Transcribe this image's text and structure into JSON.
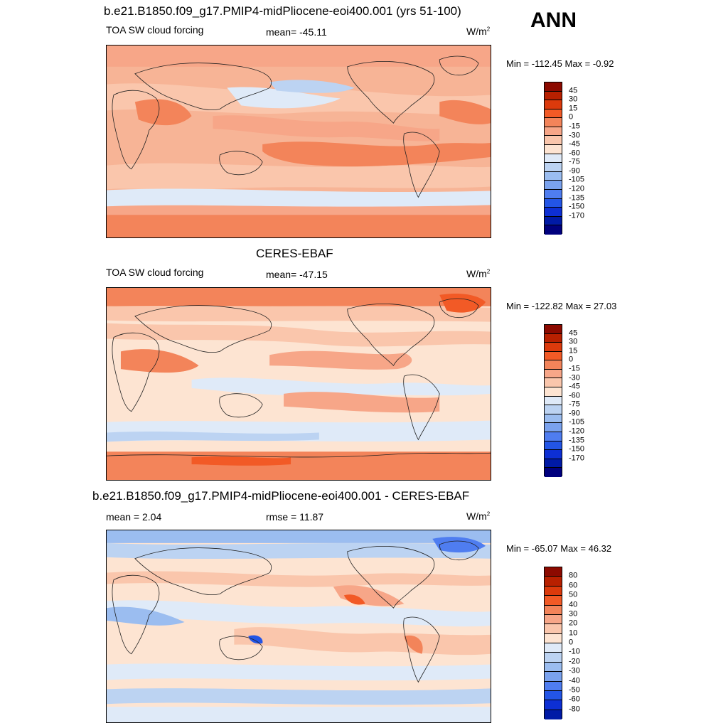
{
  "corner_label": "ANN",
  "panels": [
    {
      "title": "b.e21.B1850.f09_g17.PMIP4-midPliocene-eoi400.001 (yrs 51-100)",
      "left_label": "TOA SW cloud forcing",
      "center_label": "mean= -45.11",
      "units": "W/m",
      "units_sup": "2",
      "minmax": "Min = -112.45 Max =  -0.92",
      "colorbar": {
        "labels": [
          "45",
          "30",
          "15",
          "0",
          "-15",
          "-30",
          "-45",
          "-60",
          "-75",
          "-90",
          "-105",
          "-120",
          "-135",
          "-150",
          "-170"
        ],
        "colors": [
          "#8c0a00",
          "#b82000",
          "#dc3a0c",
          "#f25a26",
          "#f3845a",
          "#f7a688",
          "#fac6ac",
          "#fde4d2",
          "#dfeaf8",
          "#bcd3f2",
          "#9bbdf0",
          "#7aa2ee",
          "#4f7df0",
          "#2355e6",
          "#0d2fd4",
          "#001aa6",
          "#00007e"
        ]
      }
    },
    {
      "title": "CERES-EBAF",
      "left_label": "TOA SW cloud forcing",
      "center_label": "mean= -47.15",
      "units": "W/m",
      "units_sup": "2",
      "minmax": "Min = -122.82 Max =  27.03",
      "colorbar": {
        "labels": [
          "45",
          "30",
          "15",
          "0",
          "-15",
          "-30",
          "-45",
          "-60",
          "-75",
          "-90",
          "-105",
          "-120",
          "-135",
          "-150",
          "-170"
        ],
        "colors": [
          "#8c0a00",
          "#b82000",
          "#dc3a0c",
          "#f25a26",
          "#f3845a",
          "#f7a688",
          "#fac6ac",
          "#fde4d2",
          "#dfeaf8",
          "#bcd3f2",
          "#9bbdf0",
          "#7aa2ee",
          "#4f7df0",
          "#2355e6",
          "#0d2fd4",
          "#001aa6",
          "#00007e"
        ]
      }
    },
    {
      "title": "b.e21.B1850.f09_g17.PMIP4-midPliocene-eoi400.001 - CERES-EBAF",
      "left_label": "mean =   2.04",
      "center_label": "rmse =  11.87",
      "units": "W/m",
      "units_sup": "2",
      "minmax": "Min = -65.07 Max =  46.32",
      "colorbar": {
        "labels": [
          "80",
          "60",
          "50",
          "40",
          "30",
          "20",
          "10",
          "0",
          "-10",
          "-20",
          "-30",
          "-40",
          "-50",
          "-60",
          "-80"
        ],
        "colors": [
          "#8c0a00",
          "#b82000",
          "#dc3a0c",
          "#f25a26",
          "#f3845a",
          "#f7a688",
          "#fac6ac",
          "#fde4d2",
          "#dfeaf8",
          "#bcd3f2",
          "#9bbdf0",
          "#7aa2ee",
          "#4f7df0",
          "#2355e6",
          "#0d2fd4",
          "#001aa6"
        ]
      }
    }
  ]
}
